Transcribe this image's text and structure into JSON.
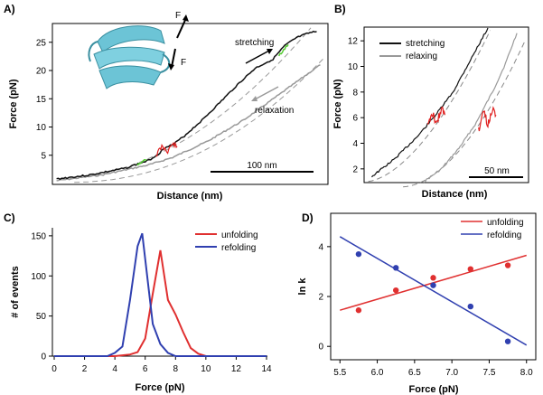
{
  "colors": {
    "stretching": "#111111",
    "relaxing": "#999999",
    "unfold": "#e02020",
    "refold_green": "#55cc33",
    "protein": "#6cc4d6",
    "fit": "#888888",
    "unfolding": "#e03030",
    "refolding": "#3040b0"
  },
  "chart_data": [
    {
      "panel": "A)",
      "type": "line",
      "xlabel": "Distance (nm)",
      "ylabel": "Force (pN)",
      "yticks": [
        5,
        10,
        15,
        20,
        25
      ],
      "ylim": [
        0,
        28
      ],
      "xlim_nm": [
        0,
        230
      ],
      "scalebar": {
        "label": "100 nm",
        "length_nm": 100
      },
      "annotations": {
        "stretching": "stretching",
        "relaxation": "relaxation",
        "force1": "F",
        "force2": "F"
      },
      "series": [
        {
          "name": "stretching",
          "x": [
            2,
            30,
            60,
            80,
            88,
            95,
            100,
            110,
            125,
            140,
            155,
            170,
            185,
            195,
            205,
            215,
            222
          ],
          "y": [
            0.8,
            1.5,
            2.7,
            4.1,
            5.2,
            6.6,
            6.8,
            8.4,
            11.2,
            14.3,
            17.5,
            20.4,
            22.0,
            24.4,
            25.8,
            26.6,
            26.9
          ]
        },
        {
          "name": "relaxing",
          "x": [
            2,
            40,
            80,
            100,
            130,
            160,
            190,
            215,
            225
          ],
          "y": [
            0.5,
            1.5,
            3.3,
            4.6,
            7.5,
            11.2,
            15.7,
            19.5,
            21.0
          ]
        }
      ]
    },
    {
      "panel": "B)",
      "type": "line",
      "xlabel": "Distance (nm)",
      "ylabel": "Force (pN)",
      "yticks": [
        2,
        4,
        6,
        8,
        10,
        12
      ],
      "ylim": [
        1,
        13
      ],
      "scalebar": {
        "label": "50 nm",
        "length_nm": 50
      },
      "series": [
        {
          "name": "stretching",
          "x": [
            0,
            20,
            40,
            55,
            70,
            85,
            100
          ],
          "y": [
            1.4,
            2.8,
            4.6,
            6.2,
            8.0,
            10.5,
            13.0
          ]
        },
        {
          "name": "relaxing",
          "x": [
            45,
            60,
            75,
            90,
            105,
            115,
            125
          ],
          "y": [
            1.0,
            2.0,
            3.6,
            5.6,
            8.2,
            10.2,
            12.6
          ]
        }
      ],
      "legend": [
        "stretching",
        "relaxing"
      ]
    },
    {
      "panel": "C)",
      "type": "line",
      "xlabel": "Force (pN)",
      "ylabel": "# of events",
      "xlim": [
        0,
        14
      ],
      "ylim": [
        0,
        160
      ],
      "xticks": [
        0,
        2,
        4,
        6,
        8,
        10,
        12,
        14
      ],
      "yticks": [
        0,
        50,
        100,
        150
      ],
      "series": [
        {
          "name": "unfolding",
          "x": [
            0,
            4,
            5,
            5.5,
            6,
            6.5,
            7,
            7.5,
            8,
            8.5,
            9,
            9.5,
            10,
            14
          ],
          "y": [
            0,
            0,
            2,
            5,
            22,
            78,
            132,
            70,
            52,
            30,
            10,
            3,
            0,
            0
          ]
        },
        {
          "name": "refolding",
          "x": [
            0,
            3.5,
            4,
            4.5,
            5,
            5.5,
            5.8,
            6.5,
            7,
            7.5,
            8,
            14
          ],
          "y": [
            0,
            0,
            4,
            12,
            70,
            137,
            153,
            40,
            15,
            4,
            0,
            0
          ]
        }
      ],
      "legend": [
        "unfolding",
        "refolding"
      ]
    },
    {
      "panel": "D)",
      "type": "scatter",
      "xlabel": "Force (pN)",
      "ylabel": "ln k",
      "xlim": [
        5.4,
        8.1
      ],
      "ylim": [
        -0.5,
        5.3
      ],
      "xticks": [
        5.5,
        6.0,
        6.5,
        7.0,
        7.5,
        8.0
      ],
      "yticks": [
        0,
        2,
        4
      ],
      "series": [
        {
          "name": "unfolding",
          "x": [
            5.75,
            6.25,
            6.75,
            7.25,
            7.75
          ],
          "y": [
            1.45,
            2.25,
            2.75,
            3.1,
            3.25
          ],
          "fit": {
            "x": [
              5.5,
              8.0
            ],
            "y": [
              1.45,
              3.65
            ]
          }
        },
        {
          "name": "refolding",
          "x": [
            5.75,
            6.25,
            6.75,
            7.25,
            7.75
          ],
          "y": [
            3.7,
            3.15,
            2.45,
            1.6,
            0.2
          ],
          "fit": {
            "x": [
              5.5,
              8.0
            ],
            "y": [
              4.4,
              0.05
            ]
          }
        }
      ],
      "legend": [
        "unfolding",
        "refolding"
      ]
    }
  ]
}
